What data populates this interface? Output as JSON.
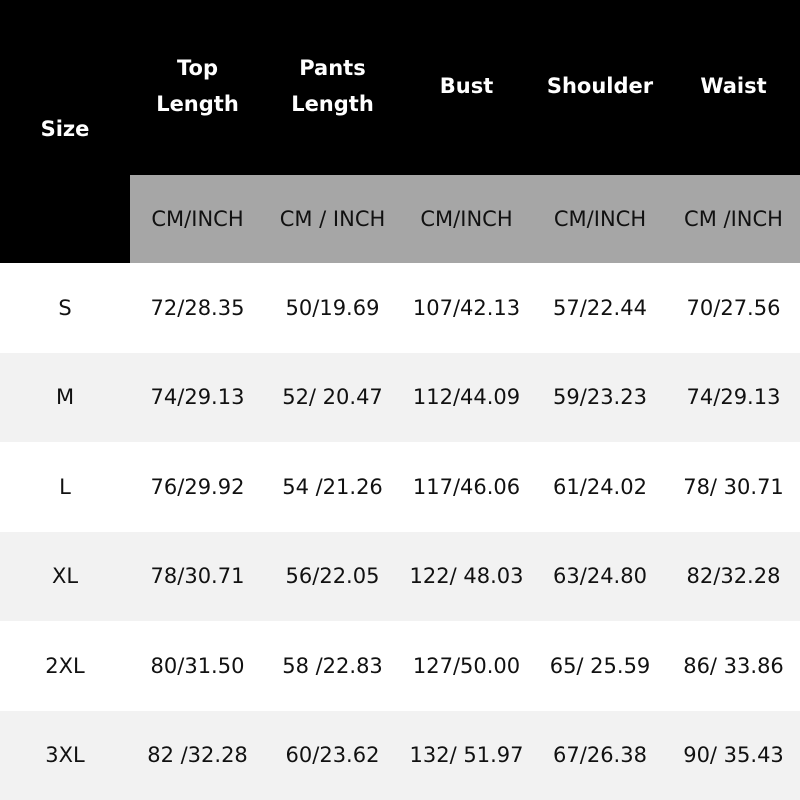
{
  "colors": {
    "header_bg": "#000000",
    "units_bg": "#a6a6a6",
    "alt_row_bg": "#f2f2f2",
    "row_bg": "#ffffff"
  },
  "headers": {
    "size": "Size",
    "columns": [
      "Top\nLength",
      "Pants\nLength",
      "Bust",
      "Shoulder",
      "Waist"
    ]
  },
  "units": [
    "CM/INCH",
    "CM / INCH",
    "CM/INCH",
    "CM/INCH",
    "CM /INCH"
  ],
  "rows": [
    {
      "size": "S",
      "values": [
        "72/28.35",
        "50/19.69",
        "107/42.13",
        "57/22.44",
        "70/27.56"
      ]
    },
    {
      "size": "M",
      "values": [
        "74/29.13",
        "52/ 20.47",
        "112/44.09",
        "59/23.23",
        "74/29.13"
      ]
    },
    {
      "size": "L",
      "values": [
        "76/29.92",
        "54 /21.26",
        "117/46.06",
        "61/24.02",
        "78/ 30.71"
      ]
    },
    {
      "size": "XL",
      "values": [
        "78/30.71",
        "56/22.05",
        "122/ 48.03",
        "63/24.80",
        "82/32.28"
      ]
    },
    {
      "size": "2XL",
      "values": [
        "80/31.50",
        "58 /22.83",
        "127/50.00",
        "65/ 25.59",
        "86/ 33.86"
      ]
    },
    {
      "size": "3XL",
      "values": [
        "82 /32.28",
        "60/23.62",
        "132/ 51.97",
        "67/26.38",
        "90/ 35.43"
      ]
    }
  ]
}
